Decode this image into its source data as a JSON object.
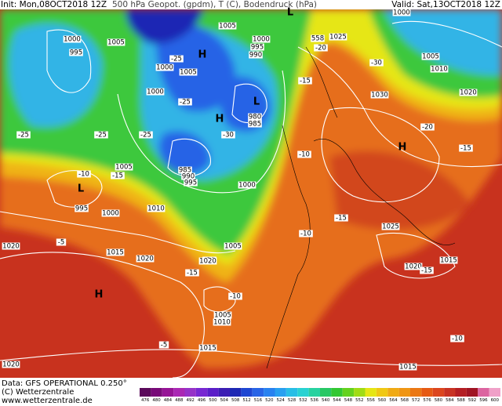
{
  "header": {
    "init": "Init: Mon,08OCT2018 12Z",
    "field": "500 hPa Geopot. (gpdm), T (C), Bodendruck (hPa)",
    "valid": "Valid: Sat,13OCT2018 12Z"
  },
  "footer": {
    "data": "Data: GFS OPERATIONAL 0.250°",
    "copyright": "(C) Wetterzentrale",
    "url": "www.wetterzentrale.de"
  },
  "colorbar": {
    "levels": [
      476,
      480,
      484,
      488,
      492,
      496,
      500,
      504,
      508,
      512,
      516,
      520,
      524,
      528,
      532,
      536,
      540,
      544,
      548,
      552,
      556,
      560,
      564,
      568,
      572,
      576,
      580,
      584,
      588,
      592,
      596,
      600
    ],
    "colors": [
      "#5a0a5a",
      "#780a78",
      "#961496",
      "#aa28b4",
      "#9632c8",
      "#7828d2",
      "#5a1ec8",
      "#3c1eb4",
      "#1e28b4",
      "#1e46d2",
      "#2864e6",
      "#2882f0",
      "#28a0f0",
      "#28bee6",
      "#28d2d2",
      "#28d2a0",
      "#28c864",
      "#32c832",
      "#64d21e",
      "#a0dc14",
      "#e6e614",
      "#f0c814",
      "#f0aa14",
      "#f09614",
      "#eb7814",
      "#e65a14",
      "#dc461e",
      "#c83223",
      "#b41e23",
      "#a01423",
      "#dc64a0",
      "#f0a0c8"
    ]
  },
  "map_labels": [
    "1000",
    "995",
    "1005",
    "1005",
    "1000",
    "995",
    "990",
    "H",
    "1000",
    "1005",
    "1000",
    "L",
    "H",
    "980",
    "985",
    "985",
    "990",
    "995",
    "1005",
    "L",
    "995",
    "1000",
    "1010",
    "1000",
    "1005",
    "1015",
    "1020",
    "1020",
    "H",
    "1005",
    "1010",
    "1015",
    "1020",
    "1015",
    "1020",
    "1015",
    "1025",
    "1030",
    "H",
    "1025",
    "1005",
    "1010",
    "1000",
    "1020",
    "558",
    "-20",
    "-30",
    "-15",
    "-25",
    "-25",
    "-30",
    "-25",
    "-10",
    "-10",
    "-15",
    "-20",
    "-15",
    "-15",
    "-10",
    "-5",
    "-15",
    "-20",
    "-10",
    "-15",
    "-5",
    "-10",
    "-25",
    "-25",
    "L",
    "1020"
  ]
}
